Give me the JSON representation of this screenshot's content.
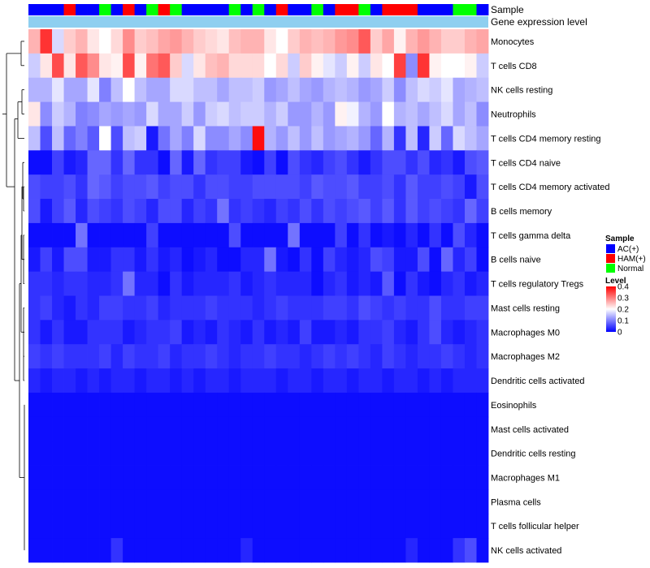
{
  "chart_data": {
    "type": "heatmap",
    "annotation_tracks": [
      {
        "name": "Sample",
        "label": "Sample"
      },
      {
        "name": "Gene expression level",
        "label": "Gene expression level",
        "color": "#8ecff0"
      }
    ],
    "sample_groups": [
      "AC",
      "AC",
      "AC",
      "HAM",
      "AC",
      "AC",
      "Normal",
      "AC",
      "HAM",
      "AC",
      "Normal",
      "HAM",
      "Normal",
      "AC",
      "AC",
      "AC",
      "AC",
      "Normal",
      "AC",
      "Normal",
      "AC",
      "HAM",
      "AC",
      "AC",
      "Normal",
      "AC",
      "HAM",
      "HAM",
      "Normal",
      "AC",
      "HAM",
      "HAM",
      "HAM",
      "AC",
      "AC",
      "AC",
      "Normal",
      "Normal",
      "AC"
    ],
    "rows": [
      "Monocytes",
      "T cells CD8",
      "NK cells resting",
      "Neutrophils",
      "T cells CD4 memory resting",
      "T cells CD4 naive",
      "T cells CD4 memory activated",
      "B cells memory",
      "T cells gamma delta",
      "B cells naive",
      "T cells regulatory  Tregs",
      "Mast cells resting",
      "Macrophages M0",
      "Macrophages M2",
      "Dendritic cells activated",
      "Eosinophils",
      "Mast cells activated",
      "Dendritic cells resting",
      "Macrophages M1",
      "Plasma cells",
      "T cells follicular helper",
      "NK cells activated"
    ],
    "values": [
      [
        0.26,
        0.36,
        0.17,
        0.24,
        0.26,
        0.22,
        0.2,
        0.23,
        0.29,
        0.24,
        0.25,
        0.27,
        0.28,
        0.26,
        0.24,
        0.23,
        0.22,
        0.25,
        0.26,
        0.26,
        0.22,
        0.2,
        0.24,
        0.26,
        0.25,
        0.26,
        0.28,
        0.29,
        0.33,
        0.24,
        0.27,
        0.21,
        0.26,
        0.28,
        0.26,
        0.24,
        0.24,
        0.26,
        0.27
      ],
      [
        0.16,
        0.22,
        0.34,
        0.22,
        0.33,
        0.29,
        0.22,
        0.21,
        0.34,
        0.21,
        0.31,
        0.33,
        0.24,
        0.17,
        0.22,
        0.25,
        0.26,
        0.23,
        0.23,
        0.23,
        0.2,
        0.23,
        0.16,
        0.24,
        0.21,
        0.18,
        0.16,
        0.21,
        0.16,
        0.22,
        0.2,
        0.35,
        0.11,
        0.36,
        0.21,
        0.2,
        0.2,
        0.21,
        0.16
      ],
      [
        0.14,
        0.14,
        0.18,
        0.13,
        0.13,
        0.18,
        0.1,
        0.15,
        0.2,
        0.15,
        0.13,
        0.13,
        0.17,
        0.17,
        0.15,
        0.15,
        0.13,
        0.15,
        0.15,
        0.16,
        0.12,
        0.13,
        0.15,
        0.13,
        0.12,
        0.14,
        0.15,
        0.14,
        0.12,
        0.13,
        0.16,
        0.11,
        0.15,
        0.17,
        0.16,
        0.18,
        0.13,
        0.14,
        0.15
      ],
      [
        0.22,
        0.11,
        0.16,
        0.14,
        0.1,
        0.11,
        0.13,
        0.12,
        0.13,
        0.12,
        0.17,
        0.13,
        0.13,
        0.16,
        0.12,
        0.16,
        0.17,
        0.15,
        0.16,
        0.16,
        0.14,
        0.16,
        0.12,
        0.12,
        0.14,
        0.12,
        0.21,
        0.19,
        0.14,
        0.12,
        0.2,
        0.14,
        0.15,
        0.13,
        0.15,
        0.17,
        0.13,
        0.15,
        0.11
      ],
      [
        0.15,
        0.06,
        0.15,
        0.08,
        0.1,
        0.07,
        0.2,
        0.06,
        0.15,
        0.16,
        0.02,
        0.09,
        0.13,
        0.1,
        0.17,
        0.11,
        0.11,
        0.13,
        0.11,
        0.39,
        0.14,
        0.12,
        0.15,
        0.12,
        0.15,
        0.12,
        0.13,
        0.14,
        0.12,
        0.08,
        0.14,
        0.04,
        0.15,
        0.03,
        0.16,
        0.08,
        0.17,
        0.15,
        0.13
      ],
      [
        0.01,
        0.01,
        0.05,
        0.02,
        0.03,
        0.08,
        0.08,
        0.04,
        0.08,
        0.04,
        0.04,
        0.01,
        0.08,
        0.02,
        0.08,
        0.04,
        0.05,
        0.05,
        0.02,
        0.01,
        0.05,
        0.01,
        0.06,
        0.04,
        0.03,
        0.05,
        0.06,
        0.04,
        0.02,
        0.04,
        0.06,
        0.06,
        0.04,
        0.06,
        0.03,
        0.04,
        0.02,
        0.06,
        0.07
      ],
      [
        0.06,
        0.05,
        0.05,
        0.06,
        0.04,
        0.08,
        0.07,
        0.05,
        0.06,
        0.06,
        0.07,
        0.05,
        0.06,
        0.06,
        0.04,
        0.06,
        0.06,
        0.05,
        0.05,
        0.06,
        0.06,
        0.06,
        0.06,
        0.05,
        0.07,
        0.06,
        0.06,
        0.07,
        0.05,
        0.05,
        0.06,
        0.04,
        0.07,
        0.05,
        0.05,
        0.06,
        0.05,
        0.02,
        0.06
      ],
      [
        0.06,
        0.02,
        0.05,
        0.07,
        0.03,
        0.06,
        0.05,
        0.04,
        0.06,
        0.05,
        0.03,
        0.06,
        0.06,
        0.03,
        0.05,
        0.04,
        0.09,
        0.04,
        0.05,
        0.04,
        0.03,
        0.05,
        0.04,
        0.06,
        0.04,
        0.06,
        0.05,
        0.06,
        0.07,
        0.05,
        0.07,
        0.04,
        0.07,
        0.05,
        0.06,
        0.05,
        0.04,
        0.08,
        0.05
      ],
      [
        0.01,
        0.01,
        0.01,
        0.01,
        0.09,
        0.01,
        0.01,
        0.01,
        0.01,
        0.01,
        0.05,
        0.01,
        0.01,
        0.01,
        0.01,
        0.01,
        0.01,
        0.06,
        0.01,
        0.01,
        0.01,
        0.01,
        0.09,
        0.01,
        0.01,
        0.01,
        0.05,
        0.01,
        0.04,
        0.01,
        0.02,
        0.01,
        0.03,
        0.01,
        0.04,
        0.01,
        0.06,
        0.03,
        0.01
      ],
      [
        0.02,
        0.05,
        0.02,
        0.06,
        0.06,
        0.02,
        0.02,
        0.04,
        0.04,
        0.02,
        0.04,
        0.02,
        0.03,
        0.01,
        0.02,
        0.03,
        0.01,
        0.01,
        0.03,
        0.03,
        0.09,
        0.02,
        0.01,
        0.04,
        0.01,
        0.05,
        0.03,
        0.02,
        0.03,
        0.06,
        0.05,
        0.02,
        0.02,
        0.06,
        0.01,
        0.08,
        0.03,
        0.05,
        0.01
      ],
      [
        0.04,
        0.04,
        0.03,
        0.04,
        0.04,
        0.03,
        0.03,
        0.04,
        0.09,
        0.03,
        0.03,
        0.01,
        0.04,
        0.02,
        0.03,
        0.03,
        0.03,
        0.04,
        0.02,
        0.03,
        0.04,
        0.03,
        0.03,
        0.03,
        0.01,
        0.03,
        0.04,
        0.02,
        0.03,
        0.02,
        0.07,
        0.01,
        0.04,
        0.02,
        0.01,
        0.03,
        0.04,
        0.02,
        0.03
      ],
      [
        0.04,
        0.05,
        0.03,
        0.02,
        0.04,
        0.03,
        0.05,
        0.05,
        0.04,
        0.04,
        0.05,
        0.03,
        0.04,
        0.04,
        0.04,
        0.05,
        0.04,
        0.04,
        0.04,
        0.03,
        0.04,
        0.05,
        0.04,
        0.04,
        0.04,
        0.05,
        0.05,
        0.04,
        0.06,
        0.05,
        0.04,
        0.05,
        0.04,
        0.04,
        0.06,
        0.04,
        0.04,
        0.05,
        0.05
      ],
      [
        0.04,
        0.02,
        0.04,
        0.02,
        0.02,
        0.04,
        0.04,
        0.04,
        0.02,
        0.03,
        0.04,
        0.04,
        0.05,
        0.02,
        0.03,
        0.02,
        0.04,
        0.03,
        0.02,
        0.04,
        0.02,
        0.03,
        0.02,
        0.05,
        0.02,
        0.02,
        0.03,
        0.02,
        0.04,
        0.04,
        0.05,
        0.03,
        0.02,
        0.04,
        0.06,
        0.03,
        0.02,
        0.03,
        0.04
      ],
      [
        0.05,
        0.04,
        0.05,
        0.04,
        0.04,
        0.04,
        0.05,
        0.03,
        0.05,
        0.04,
        0.04,
        0.05,
        0.03,
        0.04,
        0.04,
        0.05,
        0.04,
        0.03,
        0.04,
        0.04,
        0.05,
        0.04,
        0.04,
        0.03,
        0.04,
        0.05,
        0.04,
        0.05,
        0.04,
        0.03,
        0.05,
        0.04,
        0.03,
        0.04,
        0.04,
        0.05,
        0.04,
        0.03,
        0.04
      ],
      [
        0.03,
        0.02,
        0.03,
        0.03,
        0.02,
        0.03,
        0.02,
        0.03,
        0.03,
        0.02,
        0.03,
        0.03,
        0.02,
        0.03,
        0.02,
        0.03,
        0.03,
        0.02,
        0.03,
        0.03,
        0.03,
        0.02,
        0.03,
        0.03,
        0.02,
        0.03,
        0.03,
        0.02,
        0.03,
        0.03,
        0.02,
        0.03,
        0.03,
        0.02,
        0.03,
        0.02,
        0.03,
        0.03,
        0.03
      ],
      [
        0.01,
        0.01,
        0.01,
        0.01,
        0.01,
        0.01,
        0.01,
        0.01,
        0.01,
        0.01,
        0.01,
        0.01,
        0.01,
        0.01,
        0.01,
        0.01,
        0.01,
        0.01,
        0.01,
        0.01,
        0.01,
        0.01,
        0.01,
        0.01,
        0.01,
        0.01,
        0.01,
        0.01,
        0.01,
        0.01,
        0.01,
        0.01,
        0.01,
        0.01,
        0.01,
        0.01,
        0.01,
        0.01,
        0.01
      ],
      [
        0.01,
        0.01,
        0.01,
        0.01,
        0.01,
        0.01,
        0.01,
        0.01,
        0.01,
        0.01,
        0.01,
        0.01,
        0.01,
        0.01,
        0.01,
        0.01,
        0.01,
        0.01,
        0.01,
        0.01,
        0.01,
        0.01,
        0.01,
        0.01,
        0.01,
        0.01,
        0.01,
        0.01,
        0.01,
        0.01,
        0.01,
        0.01,
        0.01,
        0.01,
        0.01,
        0.01,
        0.01,
        0.01,
        0.01
      ],
      [
        0.01,
        0.01,
        0.01,
        0.01,
        0.01,
        0.01,
        0.01,
        0.01,
        0.01,
        0.01,
        0.01,
        0.01,
        0.01,
        0.01,
        0.01,
        0.01,
        0.01,
        0.01,
        0.01,
        0.01,
        0.01,
        0.01,
        0.01,
        0.01,
        0.01,
        0.01,
        0.01,
        0.01,
        0.01,
        0.01,
        0.01,
        0.01,
        0.01,
        0.01,
        0.01,
        0.01,
        0.01,
        0.01,
        0.01
      ],
      [
        0.01,
        0.01,
        0.01,
        0.01,
        0.01,
        0.01,
        0.01,
        0.01,
        0.01,
        0.01,
        0.01,
        0.01,
        0.01,
        0.01,
        0.01,
        0.01,
        0.01,
        0.01,
        0.01,
        0.01,
        0.01,
        0.01,
        0.01,
        0.01,
        0.01,
        0.01,
        0.01,
        0.01,
        0.01,
        0.01,
        0.01,
        0.01,
        0.01,
        0.01,
        0.01,
        0.01,
        0.01,
        0.01,
        0.01
      ],
      [
        0.01,
        0.01,
        0.01,
        0.01,
        0.01,
        0.01,
        0.01,
        0.01,
        0.01,
        0.01,
        0.01,
        0.01,
        0.01,
        0.01,
        0.01,
        0.01,
        0.01,
        0.01,
        0.01,
        0.01,
        0.01,
        0.01,
        0.01,
        0.01,
        0.01,
        0.01,
        0.01,
        0.01,
        0.01,
        0.01,
        0.01,
        0.01,
        0.01,
        0.01,
        0.01,
        0.01,
        0.01,
        0.01,
        0.01
      ],
      [
        0.01,
        0.01,
        0.01,
        0.01,
        0.01,
        0.01,
        0.01,
        0.01,
        0.01,
        0.01,
        0.01,
        0.01,
        0.01,
        0.01,
        0.01,
        0.01,
        0.01,
        0.01,
        0.01,
        0.01,
        0.01,
        0.01,
        0.01,
        0.01,
        0.01,
        0.01,
        0.01,
        0.01,
        0.01,
        0.01,
        0.01,
        0.01,
        0.01,
        0.01,
        0.01,
        0.01,
        0.01,
        0.01,
        0.01
      ],
      [
        0.01,
        0.01,
        0.01,
        0.01,
        0.01,
        0.01,
        0.01,
        0.04,
        0.01,
        0.01,
        0.01,
        0.01,
        0.01,
        0.01,
        0.01,
        0.01,
        0.01,
        0.01,
        0.03,
        0.01,
        0.01,
        0.01,
        0.01,
        0.01,
        0.01,
        0.01,
        0.01,
        0.01,
        0.01,
        0.01,
        0.01,
        0.01,
        0.03,
        0.01,
        0.01,
        0.01,
        0.04,
        0.06,
        0.01
      ]
    ],
    "color_scale": {
      "min": 0,
      "max": 0.4,
      "stops": [
        {
          "value": 0,
          "color": "#0000ff"
        },
        {
          "value": 0.2,
          "color": "#ffffff"
        },
        {
          "value": 0.4,
          "color": "#ff0000"
        }
      ]
    },
    "legend_sample": {
      "title": "Sample",
      "entries": [
        {
          "key": "AC",
          "label": "AC(+)",
          "color": "#0000ff"
        },
        {
          "key": "HAM",
          "label": "HAM(+)",
          "color": "#ff0000"
        },
        {
          "key": "Normal",
          "label": "Normal",
          "color": "#00ff00"
        }
      ]
    },
    "legend_level": {
      "title": "Level",
      "ticks": [
        {
          "value": 0.4,
          "label": "0.4"
        },
        {
          "value": 0.3,
          "label": "0.3"
        },
        {
          "value": 0.2,
          "label": "0.2"
        },
        {
          "value": 0.1,
          "label": "0.1"
        },
        {
          "value": 0,
          "label": "0"
        }
      ]
    },
    "dendrogram": "row clustering"
  }
}
